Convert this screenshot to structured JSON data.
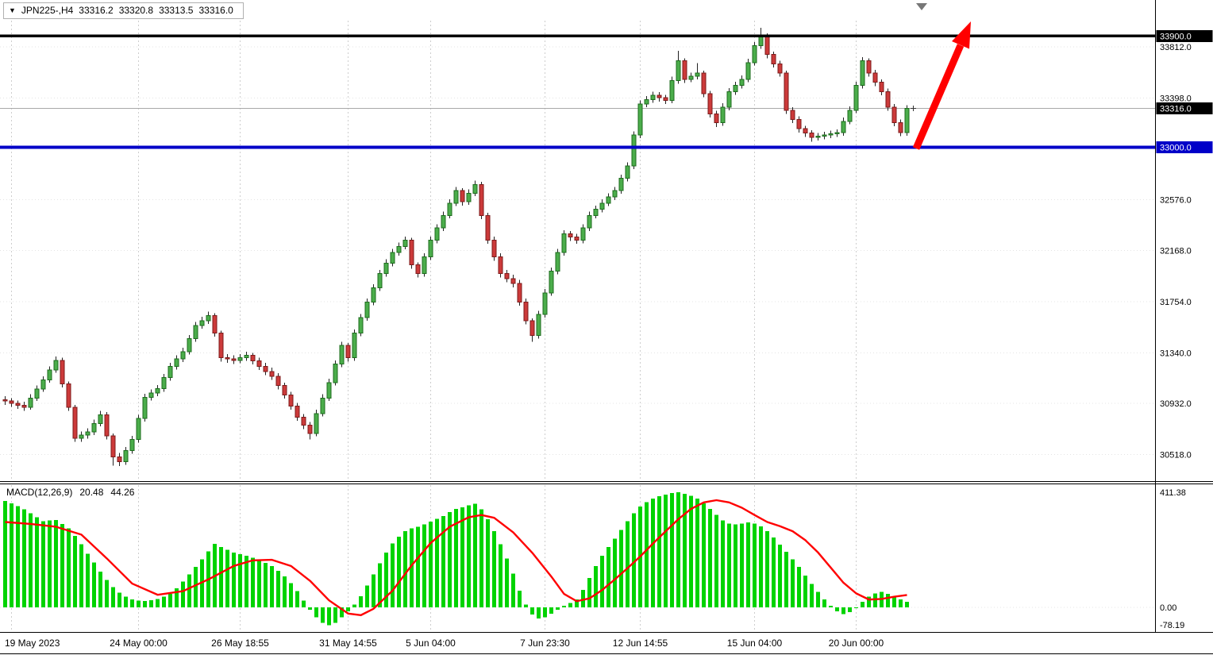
{
  "header": {
    "dropdown_icon": "▼",
    "symbol_timeframe": "JPN225-,H4",
    "open": "33316.2",
    "high": "33320.8",
    "low": "33313.5",
    "close": "33316.0"
  },
  "colors": {
    "bull_body": "#4bad4b",
    "bull_border": "#1c6b1c",
    "bear_body": "#cc3a3a",
    "bear_border": "#7d1a1a",
    "wick": "#222222",
    "macd_hist": "#00d300",
    "macd_signal": "#ff0000",
    "grid": "#cdcdcd",
    "grid_dot": "#e4e4e4",
    "bid_line": "#a8a8a8",
    "support": "#0000c8",
    "resistance": "#000000",
    "arrow": "#ff0000",
    "axis_text": "#000000"
  },
  "chart_data": {
    "type": "candlestick",
    "symbol": "JPN225-",
    "timeframe": "H4",
    "quote": {
      "open": 33316.2,
      "high": 33320.8,
      "low": 33313.5,
      "close": 33316.0
    },
    "price_axis": {
      "ylim": [
        30310,
        34030
      ],
      "labels": [
        {
          "text": "33900.0",
          "price": 33900,
          "style": "highlight-black"
        },
        {
          "text": "33812.0",
          "price": 33812,
          "style": "plain"
        },
        {
          "text": "33398.0",
          "price": 33398,
          "style": "plain"
        },
        {
          "text": "33316.0",
          "price": 33316,
          "style": "highlight-black"
        },
        {
          "text": "33000.0",
          "price": 33000,
          "style": "highlight-blue"
        },
        {
          "text": "32576.0",
          "price": 32576,
          "style": "plain"
        },
        {
          "text": "32168.0",
          "price": 32168,
          "style": "plain"
        },
        {
          "text": "31754.0",
          "price": 31754,
          "style": "plain"
        },
        {
          "text": "31340.0",
          "price": 31340,
          "style": "plain"
        },
        {
          "text": "30932.0",
          "price": 30932,
          "style": "plain"
        },
        {
          "text": "30518.0",
          "price": 30518,
          "style": "plain"
        }
      ]
    },
    "levels": {
      "resistance": {
        "price": 33900,
        "color": "#000000"
      },
      "support": {
        "price": 33000,
        "color": "#0000c8"
      },
      "bid": {
        "price": 33316.0
      }
    },
    "annotation_arrow": {
      "from_price": 33000,
      "to_price": 33900,
      "color": "#ff0000"
    },
    "time_axis": [
      {
        "text": "19 May 2023",
        "index": 1
      },
      {
        "text": "24 May 00:00",
        "index": 21
      },
      {
        "text": "26 May 18:55",
        "index": 37
      },
      {
        "text": "31 May 14:55",
        "index": 54
      },
      {
        "text": "5 Jun 04:00",
        "index": 67
      },
      {
        "text": "7 Jun 23:30",
        "index": 85
      },
      {
        "text": "12 Jun 14:55",
        "index": 100
      },
      {
        "text": "15 Jun 04:00",
        "index": 118
      },
      {
        "text": "20 Jun 00:00",
        "index": 134
      }
    ],
    "candles": [
      [
        30960,
        30990,
        30920,
        30950
      ],
      [
        30950,
        30975,
        30903,
        30933
      ],
      [
        30933,
        30955,
        30887,
        30917
      ],
      [
        30917,
        30945,
        30870,
        30900
      ],
      [
        30900,
        31005,
        30880,
        30973
      ],
      [
        30973,
        31075,
        30950,
        31047
      ],
      [
        31047,
        31150,
        31025,
        31120
      ],
      [
        31120,
        31230,
        31100,
        31200
      ],
      [
        31200,
        31310,
        31180,
        31280
      ],
      [
        31280,
        31300,
        31060,
        31090
      ],
      [
        31090,
        31110,
        30870,
        30900
      ],
      [
        30900,
        30920,
        30620,
        30650
      ],
      [
        30650,
        30705,
        30622,
        30675
      ],
      [
        30675,
        30730,
        30648,
        30700
      ],
      [
        30700,
        30800,
        30675,
        30770
      ],
      [
        30770,
        30870,
        30745,
        30840
      ],
      [
        30840,
        30860,
        30640,
        30670
      ],
      [
        30670,
        30690,
        30430,
        30500
      ],
      [
        30500,
        30530,
        30425,
        30460
      ],
      [
        30460,
        30580,
        30435,
        30550
      ],
      [
        30550,
        30670,
        30525,
        30640
      ],
      [
        30640,
        30840,
        30615,
        30810
      ],
      [
        30810,
        31010,
        30785,
        30980
      ],
      [
        30980,
        31045,
        30955,
        31015
      ],
      [
        31015,
        31080,
        30990,
        31050
      ],
      [
        31050,
        31170,
        31025,
        31140
      ],
      [
        31140,
        31260,
        31115,
        31230
      ],
      [
        31230,
        31320,
        31205,
        31290
      ],
      [
        31290,
        31380,
        31265,
        31350
      ],
      [
        31350,
        31485,
        31325,
        31455
      ],
      [
        31455,
        31590,
        31430,
        31560
      ],
      [
        31560,
        31630,
        31535,
        31600
      ],
      [
        31600,
        31672,
        31575,
        31640
      ],
      [
        31640,
        31660,
        31470,
        31500
      ],
      [
        31500,
        31520,
        31270,
        31300
      ],
      [
        31300,
        31330,
        31260,
        31290
      ],
      [
        31290,
        31320,
        31250,
        31280
      ],
      [
        31280,
        31330,
        31255,
        31300
      ],
      [
        31300,
        31350,
        31275,
        31320
      ],
      [
        31320,
        31340,
        31245,
        31275
      ],
      [
        31275,
        31300,
        31200,
        31230
      ],
      [
        31230,
        31260,
        31160,
        31190
      ],
      [
        31190,
        31220,
        31120,
        31150
      ],
      [
        31150,
        31175,
        31045,
        31075
      ],
      [
        31075,
        31100,
        30970,
        31000
      ],
      [
        31000,
        31025,
        30880,
        30910
      ],
      [
        30910,
        30935,
        30790,
        30820
      ],
      [
        30820,
        30845,
        30725,
        30755
      ],
      [
        30755,
        30780,
        30640,
        30690
      ],
      [
        30690,
        30880,
        30665,
        30850
      ],
      [
        30850,
        31005,
        30825,
        30975
      ],
      [
        30975,
        31130,
        30950,
        31100
      ],
      [
        31100,
        31280,
        31075,
        31250
      ],
      [
        31250,
        31430,
        31225,
        31400
      ],
      [
        31400,
        31420,
        31270,
        31300
      ],
      [
        31300,
        31530,
        31275,
        31500
      ],
      [
        31500,
        31655,
        31475,
        31625
      ],
      [
        31625,
        31780,
        31600,
        31750
      ],
      [
        31750,
        31895,
        31725,
        31865
      ],
      [
        31865,
        32010,
        31840,
        31980
      ],
      [
        31980,
        32095,
        31955,
        32065
      ],
      [
        32065,
        32180,
        32040,
        32150
      ],
      [
        32150,
        32230,
        32125,
        32200
      ],
      [
        32200,
        32280,
        32175,
        32250
      ],
      [
        32250,
        32270,
        32020,
        32050
      ],
      [
        32050,
        32070,
        31950,
        31980
      ],
      [
        31980,
        32145,
        31955,
        32115
      ],
      [
        32115,
        32280,
        32090,
        32250
      ],
      [
        32250,
        32380,
        32225,
        32350
      ],
      [
        32350,
        32480,
        32325,
        32450
      ],
      [
        32450,
        32580,
        32425,
        32550
      ],
      [
        32550,
        32680,
        32525,
        32650
      ],
      [
        32650,
        32670,
        32530,
        32560
      ],
      [
        32560,
        32660,
        32535,
        32630
      ],
      [
        32630,
        32730,
        32605,
        32700
      ],
      [
        32700,
        32720,
        32420,
        32450
      ],
      [
        32450,
        32470,
        32220,
        32250
      ],
      [
        32250,
        32280,
        32085,
        32115
      ],
      [
        32115,
        32145,
        31950,
        31980
      ],
      [
        31980,
        32010,
        31910,
        31940
      ],
      [
        31940,
        31970,
        31870,
        31900
      ],
      [
        31900,
        31930,
        31720,
        31750
      ],
      [
        31750,
        31780,
        31570,
        31600
      ],
      [
        31600,
        31620,
        31430,
        31480
      ],
      [
        31480,
        31680,
        31455,
        31650
      ],
      [
        31650,
        31855,
        31625,
        31825
      ],
      [
        31825,
        32030,
        31800,
        32000
      ],
      [
        32000,
        32180,
        31975,
        32150
      ],
      [
        32150,
        32330,
        32125,
        32300
      ],
      [
        32300,
        32325,
        32245,
        32275
      ],
      [
        32275,
        32300,
        32220,
        32250
      ],
      [
        32250,
        32380,
        32225,
        32350
      ],
      [
        32350,
        32480,
        32325,
        32450
      ],
      [
        32450,
        32530,
        32425,
        32500
      ],
      [
        32500,
        32580,
        32475,
        32550
      ],
      [
        32550,
        32630,
        32525,
        32600
      ],
      [
        32600,
        32680,
        32575,
        32650
      ],
      [
        32650,
        32780,
        32625,
        32750
      ],
      [
        32750,
        32880,
        32725,
        32850
      ],
      [
        32850,
        33130,
        32825,
        33100
      ],
      [
        33100,
        33380,
        33075,
        33350
      ],
      [
        33350,
        33415,
        33325,
        33385
      ],
      [
        33385,
        33450,
        33360,
        33420
      ],
      [
        33420,
        33445,
        33370,
        33400
      ],
      [
        33400,
        33425,
        33350,
        33380
      ],
      [
        33380,
        33570,
        33355,
        33540
      ],
      [
        33540,
        33780,
        33515,
        33700
      ],
      [
        33700,
        33720,
        33520,
        33550
      ],
      [
        33550,
        33605,
        33525,
        33575
      ],
      [
        33575,
        33680,
        33550,
        33600
      ],
      [
        33600,
        33620,
        33405,
        33435
      ],
      [
        33435,
        33455,
        33240,
        33270
      ],
      [
        33270,
        33295,
        33165,
        33200
      ],
      [
        33200,
        33355,
        33175,
        33325
      ],
      [
        33325,
        33480,
        33300,
        33450
      ],
      [
        33450,
        33530,
        33425,
        33500
      ],
      [
        33500,
        33580,
        33475,
        33550
      ],
      [
        33550,
        33715,
        33525,
        33685
      ],
      [
        33685,
        33850,
        33660,
        33820
      ],
      [
        33820,
        33965,
        33795,
        33900
      ],
      [
        33900,
        33920,
        33720,
        33750
      ],
      [
        33750,
        33775,
        33645,
        33675
      ],
      [
        33675,
        33700,
        33570,
        33600
      ],
      [
        33600,
        33620,
        33270,
        33300
      ],
      [
        33300,
        33325,
        33195,
        33225
      ],
      [
        33225,
        33250,
        33120,
        33150
      ],
      [
        33150,
        33175,
        33085,
        33115
      ],
      [
        33115,
        33140,
        33045,
        33080
      ],
      [
        33080,
        33115,
        33055,
        33090
      ],
      [
        33090,
        33125,
        33065,
        33100
      ],
      [
        33100,
        33135,
        33075,
        33110
      ],
      [
        33110,
        33145,
        33085,
        33120
      ],
      [
        33120,
        33240,
        33095,
        33210
      ],
      [
        33210,
        33330,
        33185,
        33300
      ],
      [
        33300,
        33530,
        33275,
        33500
      ],
      [
        33500,
        33730,
        33475,
        33700
      ],
      [
        33700,
        33720,
        33570,
        33600
      ],
      [
        33600,
        33625,
        33495,
        33525
      ],
      [
        33525,
        33550,
        33420,
        33450
      ],
      [
        33450,
        33475,
        33295,
        33325
      ],
      [
        33325,
        33350,
        33170,
        33200
      ],
      [
        33200,
        33225,
        33090,
        33120
      ],
      [
        33120,
        33340,
        33095,
        33316
      ]
    ],
    "macd": {
      "label": "MACD(12,26,9)",
      "value_main": "20.48",
      "value_signal": "44.26",
      "ylim": [
        -85,
        420
      ],
      "axis_labels": [
        {
          "text": "411.38",
          "value": 411.38
        },
        {
          "text": "0.00",
          "value": 0
        },
        {
          "text": "-78.19",
          "value": -78.19
        }
      ],
      "hist": [
        380,
        372,
        362,
        350,
        336,
        322,
        308,
        310,
        312,
        298,
        282,
        255,
        225,
        192,
        160,
        128,
        98,
        72,
        52,
        38,
        28,
        24,
        22,
        25,
        30,
        38,
        48,
        68,
        92,
        118,
        145,
        172,
        200,
        227,
        216,
        206,
        196,
        190,
        184,
        177,
        169,
        159,
        148,
        130,
        110,
        86,
        58,
        24,
        -8,
        -36,
        -56,
        -64,
        -56,
        -36,
        -14,
        10,
        40,
        78,
        118,
        158,
        196,
        228,
        252,
        272,
        282,
        288,
        296,
        306,
        316,
        326,
        340,
        352,
        358,
        364,
        370,
        350,
        315,
        272,
        225,
        175,
        120,
        60,
        10,
        -25,
        -40,
        -35,
        -22,
        -8,
        5,
        15,
        28,
        62,
        105,
        148,
        184,
        215,
        246,
        276,
        308,
        336,
        360,
        376,
        388,
        397,
        403,
        408,
        411,
        406,
        398,
        388,
        372,
        352,
        330,
        310,
        300,
        297,
        300,
        304,
        300,
        289,
        272,
        249,
        224,
        198,
        171,
        144,
        114,
        84,
        55,
        28,
        5,
        -14,
        -24,
        -17,
        0,
        20,
        38,
        50,
        55,
        48,
        38,
        28,
        20.48
      ],
      "signal": [
        [
          0,
          305
        ],
        [
          4,
          298
        ],
        [
          8,
          288
        ],
        [
          12,
          260
        ],
        [
          16,
          175
        ],
        [
          20,
          85
        ],
        [
          24,
          45
        ],
        [
          28,
          58
        ],
        [
          32,
          100
        ],
        [
          36,
          148
        ],
        [
          39,
          168
        ],
        [
          42,
          170
        ],
        [
          45,
          148
        ],
        [
          48,
          95
        ],
        [
          51,
          25
        ],
        [
          54,
          -22
        ],
        [
          56,
          -28
        ],
        [
          58,
          -5
        ],
        [
          61,
          60
        ],
        [
          64,
          150
        ],
        [
          67,
          230
        ],
        [
          70,
          288
        ],
        [
          73,
          322
        ],
        [
          75,
          330
        ],
        [
          77,
          320
        ],
        [
          80,
          268
        ],
        [
          83,
          195
        ],
        [
          86,
          110
        ],
        [
          88,
          48
        ],
        [
          90,
          22
        ],
        [
          92,
          32
        ],
        [
          94,
          62
        ],
        [
          96,
          100
        ],
        [
          98,
          140
        ],
        [
          100,
          182
        ],
        [
          102,
          228
        ],
        [
          104,
          272
        ],
        [
          106,
          315
        ],
        [
          108,
          352
        ],
        [
          110,
          375
        ],
        [
          112,
          383
        ],
        [
          114,
          375
        ],
        [
          116,
          356
        ],
        [
          118,
          330
        ],
        [
          120,
          305
        ],
        [
          122,
          290
        ],
        [
          124,
          272
        ],
        [
          126,
          240
        ],
        [
          128,
          196
        ],
        [
          130,
          142
        ],
        [
          132,
          88
        ],
        [
          134,
          50
        ],
        [
          136,
          28
        ],
        [
          138,
          30
        ],
        [
          140,
          38
        ],
        [
          142,
          44.26
        ]
      ]
    }
  }
}
